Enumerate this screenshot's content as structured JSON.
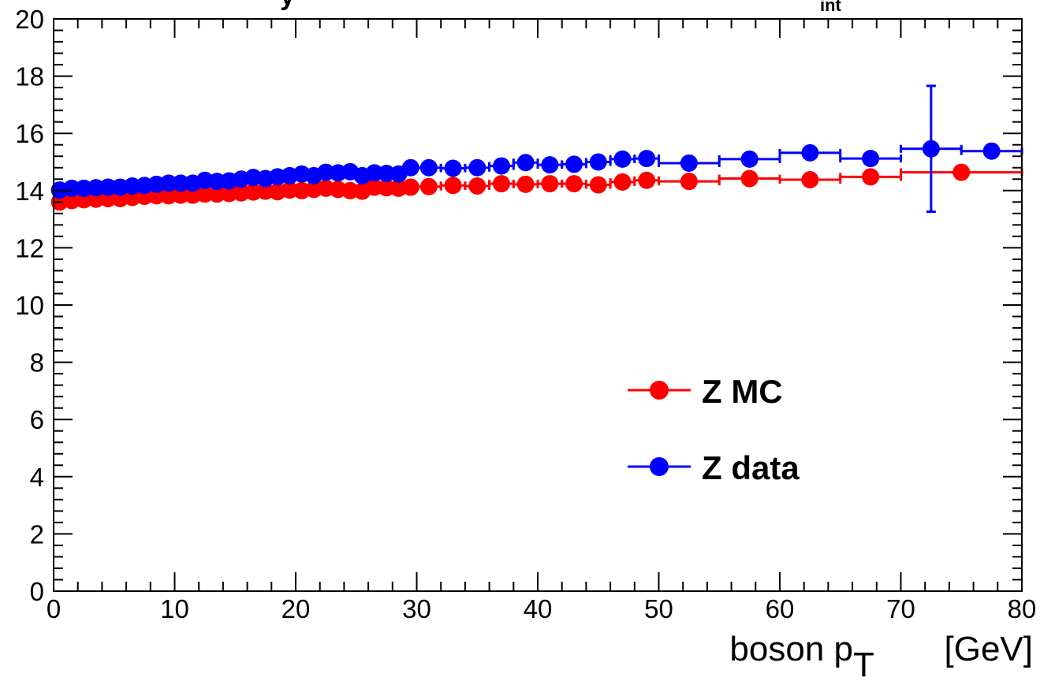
{
  "chart_data": {
    "type": "scatter",
    "title_visible_fragment": "y",
    "title_subscript_fragment": "int",
    "xlabel": "boson p",
    "xlabel_subscript": "T",
    "xlabel_unit": "[GeV]",
    "ylabel": "",
    "xlim": [
      0,
      80
    ],
    "ylim": [
      0,
      20
    ],
    "x_ticks": [
      0,
      10,
      20,
      30,
      40,
      50,
      60,
      70,
      80
    ],
    "y_ticks": [
      0,
      2,
      4,
      6,
      8,
      10,
      12,
      14,
      16,
      18,
      20
    ],
    "grid": false,
    "legend_position": "center-right",
    "series": [
      {
        "name": "Z MC",
        "color": "#ff0000",
        "points": [
          {
            "x": 0.5,
            "y": 13.6,
            "xerr": 0.5
          },
          {
            "x": 1.5,
            "y": 13.65,
            "xerr": 0.5
          },
          {
            "x": 2.5,
            "y": 13.68,
            "xerr": 0.5
          },
          {
            "x": 3.5,
            "y": 13.7,
            "xerr": 0.5
          },
          {
            "x": 4.5,
            "y": 13.72,
            "xerr": 0.5
          },
          {
            "x": 5.5,
            "y": 13.72,
            "xerr": 0.5
          },
          {
            "x": 6.5,
            "y": 13.76,
            "xerr": 0.5
          },
          {
            "x": 7.5,
            "y": 13.8,
            "xerr": 0.5
          },
          {
            "x": 8.5,
            "y": 13.82,
            "xerr": 0.5
          },
          {
            "x": 9.5,
            "y": 13.82,
            "xerr": 0.5
          },
          {
            "x": 10.5,
            "y": 13.84,
            "xerr": 0.5
          },
          {
            "x": 11.5,
            "y": 13.84,
            "xerr": 0.5
          },
          {
            "x": 12.5,
            "y": 13.88,
            "xerr": 0.5
          },
          {
            "x": 13.5,
            "y": 13.88,
            "xerr": 0.5
          },
          {
            "x": 14.5,
            "y": 13.9,
            "xerr": 0.5
          },
          {
            "x": 15.5,
            "y": 13.92,
            "xerr": 0.5
          },
          {
            "x": 16.5,
            "y": 13.95,
            "xerr": 0.5
          },
          {
            "x": 17.5,
            "y": 13.98,
            "xerr": 0.5
          },
          {
            "x": 18.5,
            "y": 13.96,
            "xerr": 0.5
          },
          {
            "x": 19.5,
            "y": 14.02,
            "xerr": 0.5
          },
          {
            "x": 20.5,
            "y": 14.0,
            "xerr": 0.5
          },
          {
            "x": 21.5,
            "y": 14.04,
            "xerr": 0.5
          },
          {
            "x": 22.5,
            "y": 14.08,
            "xerr": 0.5
          },
          {
            "x": 23.5,
            "y": 14.04,
            "xerr": 0.5
          },
          {
            "x": 24.5,
            "y": 14.0,
            "xerr": 0.5
          },
          {
            "x": 25.5,
            "y": 13.98,
            "xerr": 0.5
          },
          {
            "x": 26.5,
            "y": 14.12,
            "xerr": 0.5
          },
          {
            "x": 27.5,
            "y": 14.1,
            "xerr": 0.5
          },
          {
            "x": 28.5,
            "y": 14.08,
            "xerr": 0.5
          },
          {
            "x": 29.5,
            "y": 14.12,
            "xerr": 0.5
          },
          {
            "x": 31,
            "y": 14.14,
            "xerr": 1
          },
          {
            "x": 33,
            "y": 14.18,
            "xerr": 1
          },
          {
            "x": 35,
            "y": 14.16,
            "xerr": 1
          },
          {
            "x": 37,
            "y": 14.24,
            "xerr": 1
          },
          {
            "x": 39,
            "y": 14.22,
            "xerr": 1
          },
          {
            "x": 41,
            "y": 14.24,
            "xerr": 1
          },
          {
            "x": 43,
            "y": 14.24,
            "xerr": 1
          },
          {
            "x": 45,
            "y": 14.2,
            "xerr": 1
          },
          {
            "x": 47,
            "y": 14.3,
            "xerr": 1
          },
          {
            "x": 49,
            "y": 14.36,
            "xerr": 1
          },
          {
            "x": 52.5,
            "y": 14.32,
            "xerr": 2.5
          },
          {
            "x": 57.5,
            "y": 14.42,
            "xerr": 2.5
          },
          {
            "x": 62.5,
            "y": 14.38,
            "xerr": 2.5
          },
          {
            "x": 67.5,
            "y": 14.48,
            "xerr": 2.5
          },
          {
            "x": 75,
            "y": 14.64,
            "xerr": 5
          }
        ]
      },
      {
        "name": "Z data",
        "color": "#0000ff",
        "points": [
          {
            "x": 0.5,
            "y": 14.02,
            "xerr": 0.5
          },
          {
            "x": 1.5,
            "y": 14.08,
            "xerr": 0.5
          },
          {
            "x": 2.5,
            "y": 14.08,
            "xerr": 0.5
          },
          {
            "x": 3.5,
            "y": 14.1,
            "xerr": 0.5
          },
          {
            "x": 4.5,
            "y": 14.12,
            "xerr": 0.5
          },
          {
            "x": 5.5,
            "y": 14.12,
            "xerr": 0.5
          },
          {
            "x": 6.5,
            "y": 14.16,
            "xerr": 0.5
          },
          {
            "x": 7.5,
            "y": 14.18,
            "xerr": 0.5
          },
          {
            "x": 8.5,
            "y": 14.22,
            "xerr": 0.5
          },
          {
            "x": 9.5,
            "y": 14.26,
            "xerr": 0.5
          },
          {
            "x": 10.5,
            "y": 14.26,
            "xerr": 0.5
          },
          {
            "x": 11.5,
            "y": 14.26,
            "xerr": 0.5
          },
          {
            "x": 12.5,
            "y": 14.36,
            "xerr": 0.5
          },
          {
            "x": 13.5,
            "y": 14.32,
            "xerr": 0.5
          },
          {
            "x": 14.5,
            "y": 14.34,
            "xerr": 0.5
          },
          {
            "x": 15.5,
            "y": 14.4,
            "xerr": 0.5
          },
          {
            "x": 16.5,
            "y": 14.46,
            "xerr": 0.5
          },
          {
            "x": 17.5,
            "y": 14.42,
            "xerr": 0.5
          },
          {
            "x": 18.5,
            "y": 14.48,
            "xerr": 0.5
          },
          {
            "x": 19.5,
            "y": 14.52,
            "xerr": 0.5
          },
          {
            "x": 20.5,
            "y": 14.58,
            "xerr": 0.5
          },
          {
            "x": 21.5,
            "y": 14.52,
            "xerr": 0.5
          },
          {
            "x": 22.5,
            "y": 14.64,
            "xerr": 0.5
          },
          {
            "x": 23.5,
            "y": 14.62,
            "xerr": 0.5
          },
          {
            "x": 24.5,
            "y": 14.66,
            "xerr": 0.5
          },
          {
            "x": 25.5,
            "y": 14.52,
            "xerr": 0.5
          },
          {
            "x": 26.5,
            "y": 14.62,
            "xerr": 0.5
          },
          {
            "x": 27.5,
            "y": 14.6,
            "xerr": 0.5
          },
          {
            "x": 28.5,
            "y": 14.58,
            "xerr": 0.5
          },
          {
            "x": 29.5,
            "y": 14.8,
            "xerr": 0.5
          },
          {
            "x": 31,
            "y": 14.8,
            "xerr": 1
          },
          {
            "x": 33,
            "y": 14.78,
            "xerr": 1
          },
          {
            "x": 35,
            "y": 14.8,
            "xerr": 1
          },
          {
            "x": 37,
            "y": 14.86,
            "xerr": 1
          },
          {
            "x": 39,
            "y": 14.98,
            "xerr": 1
          },
          {
            "x": 41,
            "y": 14.9,
            "xerr": 1
          },
          {
            "x": 43,
            "y": 14.92,
            "xerr": 1
          },
          {
            "x": 45,
            "y": 15.0,
            "xerr": 1
          },
          {
            "x": 47,
            "y": 15.1,
            "xerr": 1
          },
          {
            "x": 49,
            "y": 15.12,
            "xerr": 1
          },
          {
            "x": 52.5,
            "y": 14.96,
            "xerr": 2.5
          },
          {
            "x": 57.5,
            "y": 15.1,
            "xerr": 2.5
          },
          {
            "x": 62.5,
            "y": 15.32,
            "xerr": 2.5
          },
          {
            "x": 67.5,
            "y": 15.12,
            "xerr": 2.5
          },
          {
            "x": 72.5,
            "y": 15.46,
            "xerr": 2.5,
            "yerr": 2.2
          },
          {
            "x": 77.5,
            "y": 15.38,
            "xerr": 2.5
          }
        ]
      }
    ]
  }
}
